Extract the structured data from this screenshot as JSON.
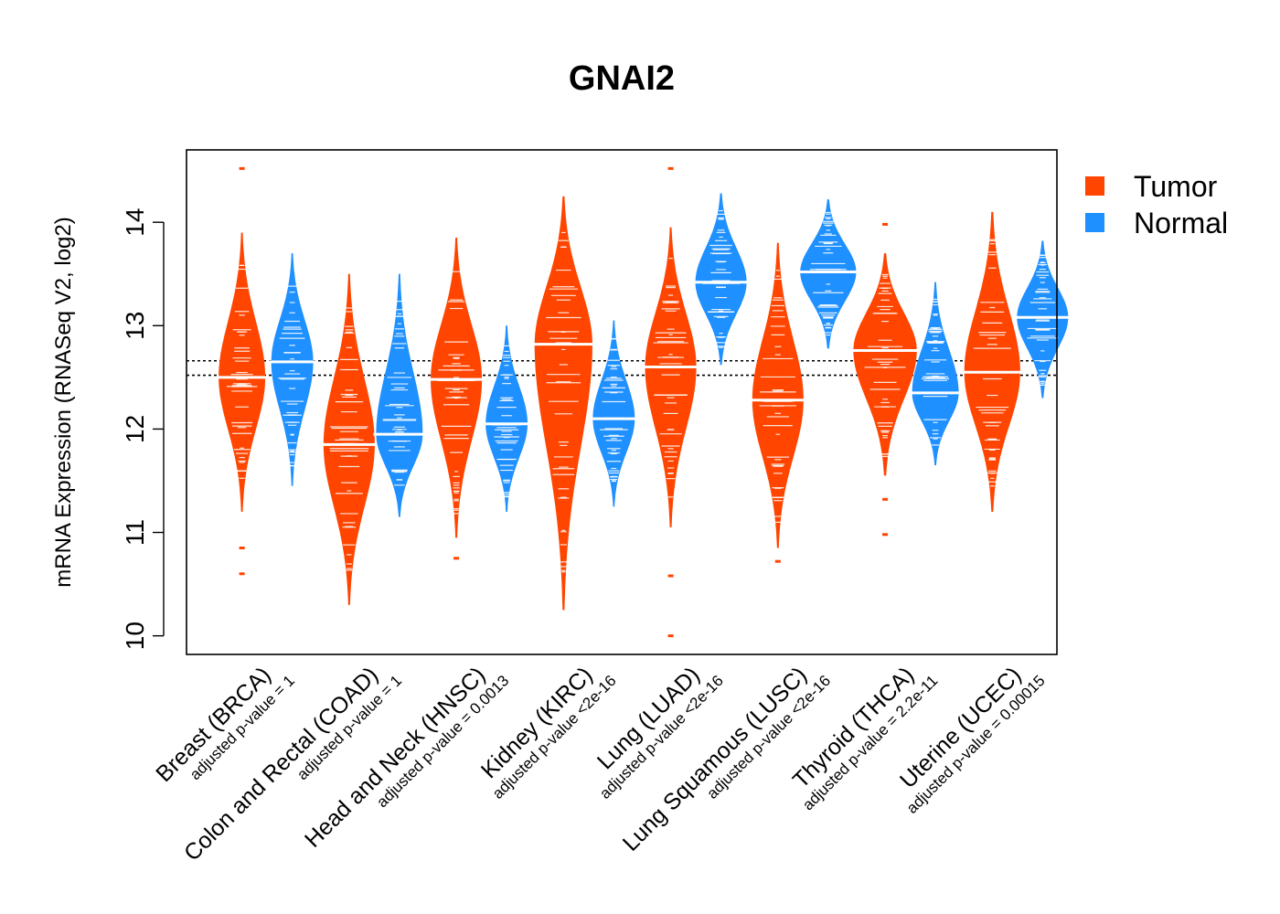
{
  "chart_data": {
    "type": "violin",
    "title": "GNAI2",
    "xlabel": "",
    "ylabel": "mRNA Expression (RNASeq V2, log2)",
    "ylim": [
      9.82,
      14.7
    ],
    "yticks": [
      "10",
      "11",
      "12",
      "13",
      "14"
    ],
    "reference_lines": [
      12.52,
      12.66
    ],
    "legend": {
      "placement": "top-right",
      "entries": [
        {
          "label": "Tumor",
          "color": "#FF4500"
        },
        {
          "label": "Normal",
          "color": "#1E90FF"
        }
      ]
    },
    "colors": {
      "tumor": "#FF4500",
      "normal": "#1E90FF",
      "frame": "#000000",
      "median_bar": "#FFFFFF"
    },
    "categories": [
      {
        "name": "Breast (BRCA)",
        "pvalue_label": "adjusted p-value = 1",
        "tumor": {
          "median": 12.5,
          "min": 11.2,
          "max": 13.9,
          "outliers": [
            14.52,
            10.85,
            10.6
          ],
          "width": 0.5
        },
        "normal": {
          "median": 12.65,
          "min": 11.45,
          "max": 13.7,
          "outliers": [],
          "width": 0.45
        }
      },
      {
        "name": "Colon and Rectal (COAD)",
        "pvalue_label": "adjusted p-value = 1",
        "tumor": {
          "median": 11.85,
          "min": 10.3,
          "max": 13.5,
          "outliers": [],
          "width": 0.55
        },
        "normal": {
          "median": 11.95,
          "min": 11.15,
          "max": 13.5,
          "outliers": [],
          "width": 0.5
        }
      },
      {
        "name": "Head and Neck (HNSC)",
        "pvalue_label": "adjusted p-value = 0.0013",
        "tumor": {
          "median": 12.48,
          "min": 10.95,
          "max": 13.85,
          "outliers": [
            10.75
          ],
          "width": 0.55
        },
        "normal": {
          "median": 12.05,
          "min": 11.2,
          "max": 13.0,
          "outliers": [],
          "width": 0.45
        }
      },
      {
        "name": "Kidney (KIRC)",
        "pvalue_label": "adjusted p-value <2e-16",
        "tumor": {
          "median": 12.82,
          "min": 10.25,
          "max": 14.25,
          "outliers": [],
          "width": 0.62
        },
        "normal": {
          "median": 12.1,
          "min": 11.25,
          "max": 13.05,
          "outliers": [],
          "width": 0.45
        }
      },
      {
        "name": "Lung (LUAD)",
        "pvalue_label": "adjusted p-value <2e-16",
        "tumor": {
          "median": 12.6,
          "min": 11.05,
          "max": 13.95,
          "outliers": [
            14.52,
            10.58,
            10.0
          ],
          "width": 0.55
        },
        "normal": {
          "median": 13.42,
          "min": 12.62,
          "max": 14.28,
          "outliers": [],
          "width": 0.55
        }
      },
      {
        "name": "Lung Squamous (LUSC)",
        "pvalue_label": "adjusted p-value <2e-16",
        "tumor": {
          "median": 12.28,
          "min": 10.85,
          "max": 13.8,
          "outliers": [
            10.72
          ],
          "width": 0.55
        },
        "normal": {
          "median": 13.52,
          "min": 12.78,
          "max": 14.22,
          "outliers": [],
          "width": 0.6
        }
      },
      {
        "name": "Thyroid (THCA)",
        "pvalue_label": "adjusted p-value = 2.2e-11",
        "tumor": {
          "median": 12.76,
          "min": 11.55,
          "max": 13.7,
          "outliers": [
            13.98,
            11.32,
            10.98
          ],
          "width": 0.68
        },
        "normal": {
          "median": 12.35,
          "min": 11.65,
          "max": 13.42,
          "outliers": [],
          "width": 0.5
        }
      },
      {
        "name": "Uterine (UCEC)",
        "pvalue_label": "adjusted p-value = 0.00015",
        "tumor": {
          "median": 12.55,
          "min": 11.2,
          "max": 14.1,
          "outliers": [],
          "width": 0.6
        },
        "normal": {
          "median": 13.08,
          "min": 12.3,
          "max": 13.82,
          "outliers": [],
          "width": 0.55
        }
      }
    ]
  }
}
